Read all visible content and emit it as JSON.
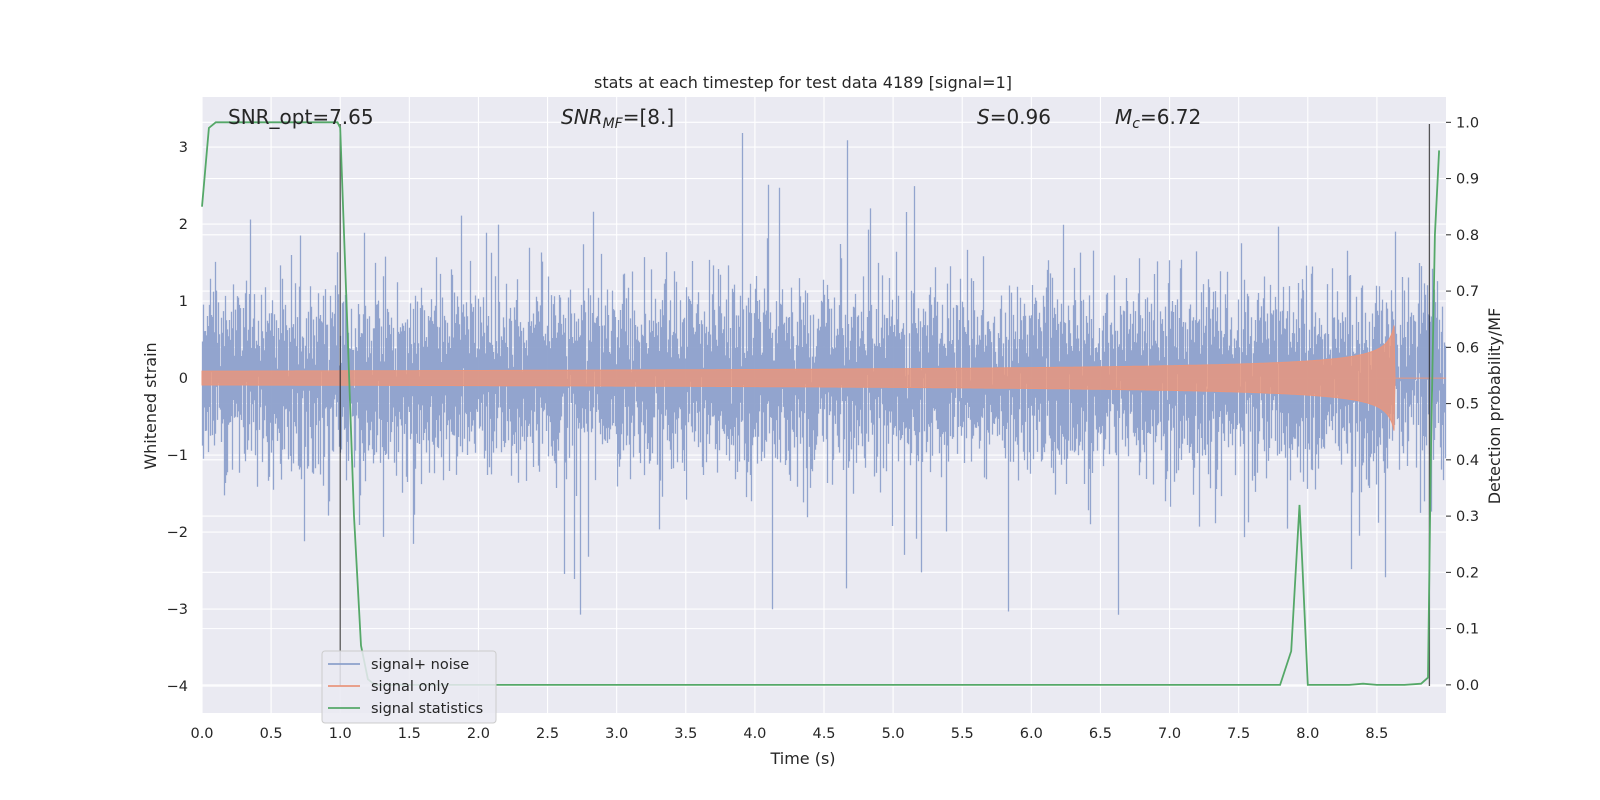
{
  "chart_data": {
    "type": "line",
    "title": "stats at each timestep for test data 4189 [signal=1]",
    "xlabel": "Time (s)",
    "ylabel": "Whitened strain",
    "y2label": "Detection probability/MF",
    "xlim": [
      0.0,
      9.0
    ],
    "ylim": [
      -4.35,
      3.65
    ],
    "y2lim": [
      -0.05,
      1.045
    ],
    "x_ticks": [
      "0.0",
      "0.5",
      "1.0",
      "1.5",
      "2.0",
      "2.5",
      "3.0",
      "3.5",
      "4.0",
      "4.5",
      "5.0",
      "5.5",
      "6.0",
      "6.5",
      "7.0",
      "7.5",
      "8.0",
      "8.5"
    ],
    "y_ticks": [
      "−4",
      "−3",
      "−2",
      "−1",
      "0",
      "1",
      "2",
      "3"
    ],
    "y2_ticks": [
      "0.0",
      "0.1",
      "0.2",
      "0.3",
      "0.4",
      "0.5",
      "0.6",
      "0.7",
      "0.8",
      "0.9",
      "1.0"
    ],
    "grid": true,
    "legend_position": "lower-left",
    "annotations": {
      "snr_opt": "SNR_opt=7.65",
      "snr_mf_base": "SNR",
      "snr_mf_sub": "MF",
      "snr_mf_value": "=[8.]",
      "s_var": "S",
      "s_value": "=0.96",
      "mc_var": "M",
      "mc_sub": "c",
      "mc_value": "=6.72"
    },
    "vertical_lines_x": [
      1.0,
      8.88
    ],
    "series": [
      {
        "name": "signal+ noise",
        "color": "#8da0cb",
        "axis": "left",
        "style": "dense whitened noise, approx. ±1.2 band with spikes to about ±3.3",
        "x_range": [
          0.0,
          9.0
        ]
      },
      {
        "name": "signal only",
        "color": "#e8967e",
        "axis": "left",
        "style": "inspiral chirp, amplitude growing from 0 to about 0.75 near 8.63 s then zero",
        "x_range": [
          0.0,
          9.0
        ]
      },
      {
        "name": "signal statistics",
        "color": "#55a868",
        "axis": "right",
        "x": [
          0.0,
          0.05,
          0.1,
          0.2,
          0.5,
          0.8,
          0.98,
          1.0,
          1.05,
          1.1,
          1.15,
          1.2,
          1.25,
          1.5,
          2.0,
          3.0,
          4.0,
          5.0,
          6.0,
          7.0,
          7.6,
          7.8,
          7.88,
          7.94,
          7.96,
          8.0,
          8.3,
          8.4,
          8.5,
          8.7,
          8.82,
          8.87,
          8.89,
          8.92,
          8.95
        ],
        "values": [
          0.85,
          0.99,
          1.0,
          1.0,
          1.0,
          1.0,
          1.0,
          0.99,
          0.65,
          0.3,
          0.07,
          0.01,
          0.0,
          0.0,
          0.0,
          0.0,
          0.0,
          0.0,
          0.0,
          0.0,
          0.0,
          0.0,
          0.06,
          0.32,
          0.22,
          0.0,
          0.0,
          0.002,
          0.0,
          0.0,
          0.002,
          0.013,
          0.4,
          0.8,
          0.95
        ]
      }
    ]
  }
}
